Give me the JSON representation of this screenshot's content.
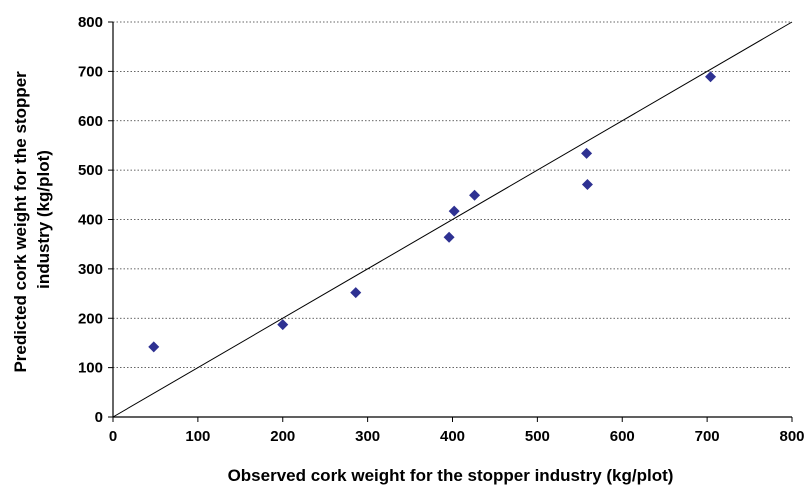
{
  "chart_data": {
    "type": "scatter",
    "xlabel": "Observed cork weight for the stopper industry (kg/plot)",
    "ylabel_lines": [
      "Predicted cork weight for the stopper",
      "industry (kg/plot)"
    ],
    "xlim": [
      0,
      800
    ],
    "ylim": [
      0,
      800
    ],
    "xticks": [
      0,
      100,
      200,
      300,
      400,
      500,
      600,
      700,
      800
    ],
    "yticks": [
      0,
      100,
      200,
      300,
      400,
      500,
      600,
      700,
      800
    ],
    "grid": "horizontal dotted",
    "reference_line": {
      "type": "y=x",
      "color": "#000000"
    },
    "marker": {
      "shape": "diamond",
      "color": "#2E3192"
    },
    "points": [
      {
        "x": 48,
        "y": 142
      },
      {
        "x": 200,
        "y": 187
      },
      {
        "x": 286,
        "y": 252
      },
      {
        "x": 396,
        "y": 364
      },
      {
        "x": 402,
        "y": 417
      },
      {
        "x": 426,
        "y": 449
      },
      {
        "x": 558,
        "y": 534
      },
      {
        "x": 559,
        "y": 471
      },
      {
        "x": 704,
        "y": 689
      }
    ]
  }
}
